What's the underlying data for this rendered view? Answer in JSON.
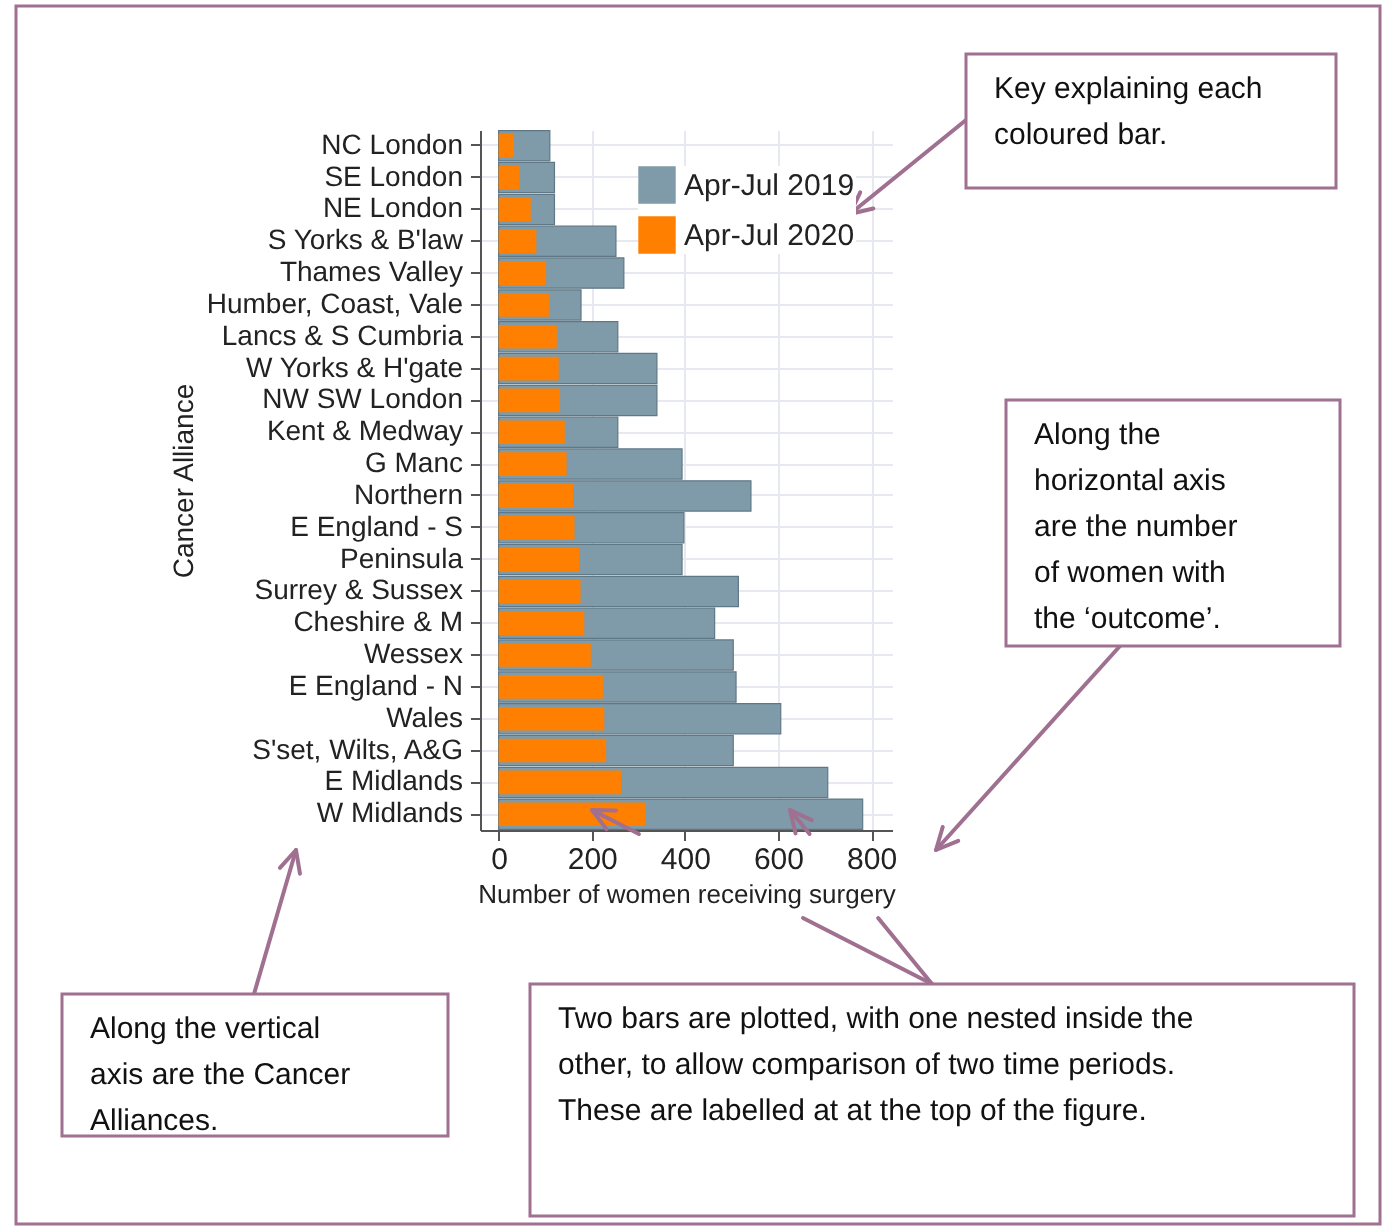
{
  "chart_data": {
    "type": "bar",
    "orientation": "horizontal",
    "categories": [
      "NC London",
      "SE London",
      "NE London",
      "S Yorks & B'law",
      "Thames Valley",
      "Humber, Coast, Vale",
      "Lancs & S Cumbria",
      "W Yorks & H'gate",
      "NW SW London",
      "Kent & Medway",
      "G Manc",
      "Northern",
      "E England - S",
      "Peninsula",
      "Surrey & Sussex",
      "Cheshire & M",
      "Wessex",
      "E England - N",
      "Wales",
      "S'set, Wilts, A&G",
      "E Midlands",
      "W Midlands"
    ],
    "series": [
      {
        "name": "Apr-Jul 2019",
        "color": "#7f9aa8",
        "values": [
          110,
          120,
          120,
          252,
          269,
          177,
          256,
          340,
          340,
          256,
          394,
          542,
          398,
          394,
          515,
          464,
          504,
          510,
          606,
          504,
          707,
          782
        ]
      },
      {
        "name": "Apr-Jul 2020",
        "color": "#ff7f00",
        "values": [
          33,
          44,
          69,
          81,
          102,
          108,
          125,
          129,
          132,
          142,
          146,
          160,
          163,
          173,
          176,
          184,
          198,
          224,
          227,
          231,
          263,
          316
        ]
      }
    ],
    "xlabel": "Number of women receiving surgery",
    "ylabel": "Cancer Alliance",
    "xlim": [
      -40,
      845
    ],
    "xticks": [
      0,
      200,
      400,
      600,
      800
    ],
    "grid": true,
    "legend": "top right",
    "annotations": [
      "Key explaining each coloured bar.",
      "Along the horizontal axis are the number of women with the ‘outcome’.",
      "Along the vertical axis are the Cancer Alliances.",
      "Two bars are plotted, with one nested inside the other, to allow comparison of two time periods. These are labelled at at the top of the figure."
    ]
  }
}
